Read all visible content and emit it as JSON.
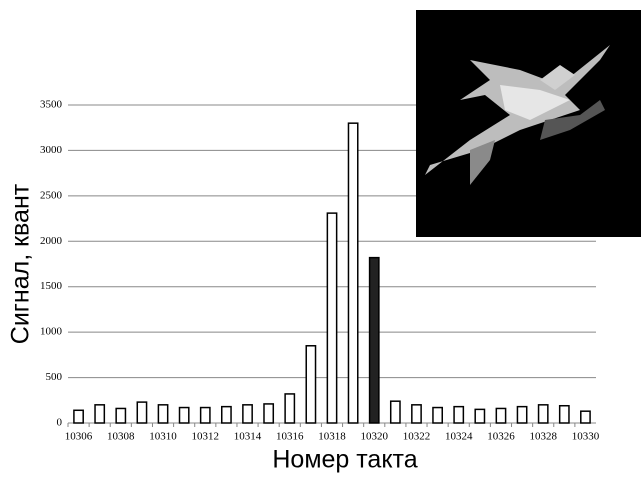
{
  "chart_data": {
    "type": "bar",
    "x_label": "Номер такта",
    "y_label": "Сигнал, квант",
    "categories": [
      "10306",
      null,
      "10308",
      null,
      "10310",
      null,
      "10312",
      null,
      "10314",
      null,
      "10316",
      null,
      "10318",
      null,
      "10320",
      null,
      "10322",
      null,
      "10324",
      null,
      "10326",
      null,
      "10328",
      null,
      "10330"
    ],
    "values": [
      140,
      200,
      160,
      230,
      200,
      170,
      170,
      180,
      200,
      210,
      320,
      850,
      2310,
      3300,
      1820,
      240,
      200,
      170,
      180,
      150,
      160,
      180,
      200,
      190,
      130
    ],
    "colors": [
      "#ffffff",
      "#ffffff",
      "#ffffff",
      "#ffffff",
      "#ffffff",
      "#ffffff",
      "#ffffff",
      "#ffffff",
      "#ffffff",
      "#ffffff",
      "#ffffff",
      "#ffffff",
      "#ffffff",
      "#ffffff",
      "#222222",
      "#ffffff",
      "#ffffff",
      "#ffffff",
      "#ffffff",
      "#ffffff",
      "#ffffff",
      "#ffffff",
      "#ffffff",
      "#ffffff",
      "#ffffff"
    ],
    "edgecolor": "#000000",
    "ylim": [
      0,
      3500
    ],
    "yticks": [
      0,
      500,
      1000,
      1500,
      2000,
      2500,
      3000,
      3500
    ],
    "grid": true
  }
}
